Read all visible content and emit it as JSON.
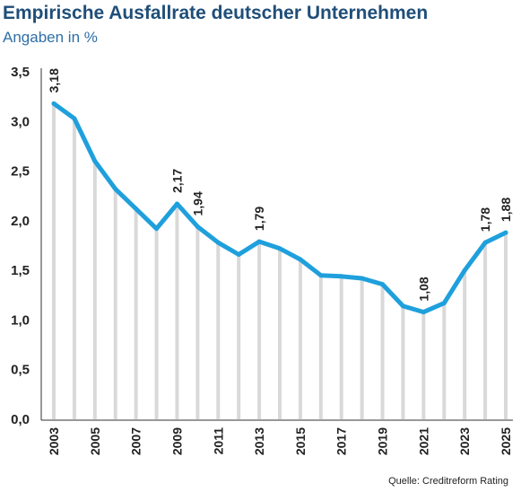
{
  "chart_data": {
    "type": "line",
    "title": "Empirische Ausfallrate deutscher Unternehmen",
    "subtitle": "Angaben in %",
    "source": "Quelle: Creditreform Rating",
    "xlabel": "",
    "ylabel": "",
    "ylim": [
      0,
      3.5
    ],
    "yticks": [
      "0,0",
      "0,5",
      "1,0",
      "1,5",
      "2,0",
      "2,5",
      "3,0",
      "3,5"
    ],
    "ytick_values": [
      0,
      0.5,
      1.0,
      1.5,
      2.0,
      2.5,
      3.0,
      3.5
    ],
    "x": [
      2003,
      2004,
      2005,
      2006,
      2007,
      2008,
      2009,
      2010,
      2011,
      2012,
      2013,
      2014,
      2015,
      2016,
      2017,
      2018,
      2019,
      2020,
      2021,
      2022,
      2023,
      2024,
      2025
    ],
    "xtick_labels": [
      "2003",
      "2005",
      "2007",
      "2009",
      "2011",
      "2013",
      "2015",
      "2017",
      "2019",
      "2021",
      "2023",
      "2025"
    ],
    "xtick_years": [
      2003,
      2005,
      2007,
      2009,
      2011,
      2013,
      2015,
      2017,
      2019,
      2021,
      2023,
      2025
    ],
    "values": [
      3.18,
      3.03,
      2.6,
      2.32,
      2.12,
      1.92,
      2.17,
      1.94,
      1.78,
      1.66,
      1.79,
      1.72,
      1.61,
      1.45,
      1.44,
      1.42,
      1.36,
      1.14,
      1.08,
      1.17,
      1.5,
      1.78,
      1.88
    ],
    "data_labels": [
      {
        "year": 2003,
        "text": "3,18"
      },
      {
        "year": 2009,
        "text": "2,17"
      },
      {
        "year": 2010,
        "text": "1,94"
      },
      {
        "year": 2013,
        "text": "1,79"
      },
      {
        "year": 2021,
        "text": "1,08"
      },
      {
        "year": 2024,
        "text": "1,78"
      },
      {
        "year": 2025,
        "text": "1,88"
      }
    ],
    "grid": false,
    "colors": {
      "line": "#1fa0dc",
      "drop_lines": "#d9d9d9",
      "title": "#1f4e79",
      "subtitle": "#2f6fa7",
      "axis": "#333333"
    }
  }
}
